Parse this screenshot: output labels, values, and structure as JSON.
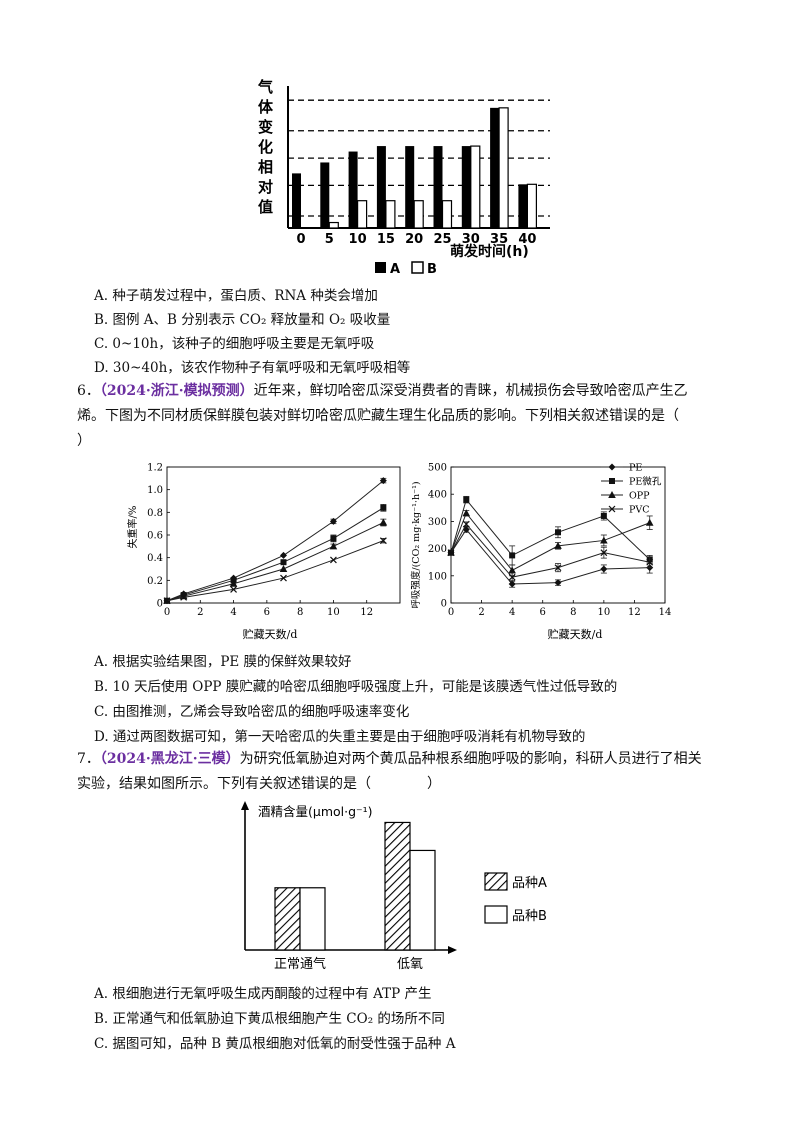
{
  "chart1": {
    "ylabel_chars": [
      "气",
      "体",
      "变",
      "化",
      "相",
      "对",
      "值"
    ],
    "xlabel": "萌发时间(h)",
    "legend": [
      "A",
      "B"
    ],
    "chart_data": {
      "type": "bar",
      "categories": [
        "0",
        "5",
        "10",
        "15",
        "20",
        "25",
        "30",
        "35",
        "40"
      ],
      "series": [
        {
          "name": "A",
          "values": [
            5,
            6,
            7,
            7.5,
            7.5,
            7.5,
            7.5,
            11,
            4
          ]
        },
        {
          "name": "B",
          "values": [
            0,
            0.5,
            2.5,
            2.5,
            2.5,
            2.5,
            7.5,
            11,
            4
          ]
        }
      ],
      "ylim": [
        0,
        13
      ]
    }
  },
  "q5_options": {
    "A": "A. 种子萌发过程中，蛋白质、RNA 种类会增加",
    "B": "B. 图例 A、B 分别表示 CO₂ 释放量和 O₂ 吸收量",
    "C": "C. 0~10h，该种子的细胞呼吸主要是无氧呼吸",
    "D": "D. 30~40h，该农作物种子有氧呼吸和无氧呼吸相等"
  },
  "q6": {
    "num": "6．",
    "source": "（2024·浙江·模拟预测）",
    "line1_rest": "近年来，鲜切哈密瓜深受消费者的青睐，机械损伤会导致哈密瓜产生乙",
    "line2": "烯。下图为不同材质保鲜膜包装对鲜切哈密瓜贮藏生理生化品质的影响。下列相关叙述错误的是（",
    "line3": "）"
  },
  "chart2": {
    "ylabel": "失重率/%",
    "xlabel": "贮藏天数/d",
    "yticks": [
      "0",
      "0.2",
      "0.4",
      "0.6",
      "0.8",
      "1.0",
      "1.2"
    ],
    "xticks": [
      "0",
      "2",
      "4",
      "6",
      "8",
      "10",
      "12"
    ],
    "chart_data": {
      "type": "line",
      "x": [
        0,
        1,
        4,
        7,
        10,
        13
      ],
      "series": [
        {
          "values": [
            0.02,
            0.08,
            0.22,
            0.42,
            0.72,
            1.08
          ]
        },
        {
          "values": [
            0.02,
            0.07,
            0.2,
            0.36,
            0.57,
            0.84
          ]
        },
        {
          "values": [
            0.02,
            0.06,
            0.17,
            0.3,
            0.5,
            0.71
          ]
        },
        {
          "values": [
            0.02,
            0.05,
            0.12,
            0.22,
            0.38,
            0.55
          ]
        }
      ],
      "ylim": [
        0,
        1.2
      ]
    }
  },
  "chart3": {
    "ylabel": "呼吸强度/(CO₂ mg·kg⁻¹·h⁻¹)",
    "xlabel": "贮藏天数/d",
    "yticks": [
      "0",
      "100",
      "200",
      "300",
      "400",
      "500"
    ],
    "xticks": [
      "0",
      "2",
      "4",
      "6",
      "8",
      "10",
      "12",
      "14"
    ],
    "legend": [
      "PE",
      "PE微孔",
      "OPP",
      "PVC"
    ],
    "chart_data": {
      "type": "line",
      "x": [
        0,
        1,
        4,
        7,
        10,
        13
      ],
      "series": [
        {
          "name": "PE",
          "values": [
            185,
            270,
            70,
            75,
            125,
            130
          ]
        },
        {
          "name": "PE微孔",
          "values": [
            185,
            380,
            175,
            260,
            320,
            160
          ]
        },
        {
          "name": "OPP",
          "values": [
            185,
            330,
            120,
            210,
            230,
            295
          ]
        },
        {
          "name": "PVC",
          "values": [
            185,
            290,
            95,
            130,
            185,
            150
          ]
        }
      ],
      "ylim": [
        0,
        500
      ],
      "xlim": [
        0,
        14
      ]
    }
  },
  "q6_options": {
    "A": "A. 根据实验结果图，PE 膜的保鲜效果较好",
    "B": "B. 10 天后使用 OPP 膜贮藏的哈密瓜细胞呼吸强度上升，可能是该膜透气性过低导致的",
    "C": "C. 由图推测，乙烯会导致哈密瓜的细胞呼吸速率变化",
    "D": "D. 通过两图数据可知，第一天哈密瓜的失重主要是由于细胞呼吸消耗有机物导致的"
  },
  "q7": {
    "num": "7．",
    "source": "（2024·黑龙江·三模）",
    "line1_rest": "为研究低氧胁迫对两个黄瓜品种根系细胞呼吸的影响，科研人员进行了相关",
    "line2": "实验，结果如图所示。下列有关叙述错误的是（　　　　）"
  },
  "chart4": {
    "ylabel": "酒精含量(μmol·g⁻¹)",
    "legend": [
      "品种A",
      "品种B"
    ],
    "chart_data": {
      "type": "bar",
      "categories": [
        "正常通气",
        "低氧"
      ],
      "series": [
        {
          "name": "品种A",
          "values": [
            2,
            4.1
          ]
        },
        {
          "name": "品种B",
          "values": [
            2,
            3.2
          ]
        }
      ],
      "ylim": [
        0,
        4.5
      ]
    }
  },
  "q7_options": {
    "A": "A. 根细胞进行无氧呼吸生成丙酮酸的过程中有 ATP 产生",
    "B": "B. 正常通气和低氧胁迫下黄瓜根细胞产生 CO₂ 的场所不同",
    "C": "C. 据图可知，品种 B 黄瓜根细胞对低氧的耐受性强于品种 A"
  }
}
